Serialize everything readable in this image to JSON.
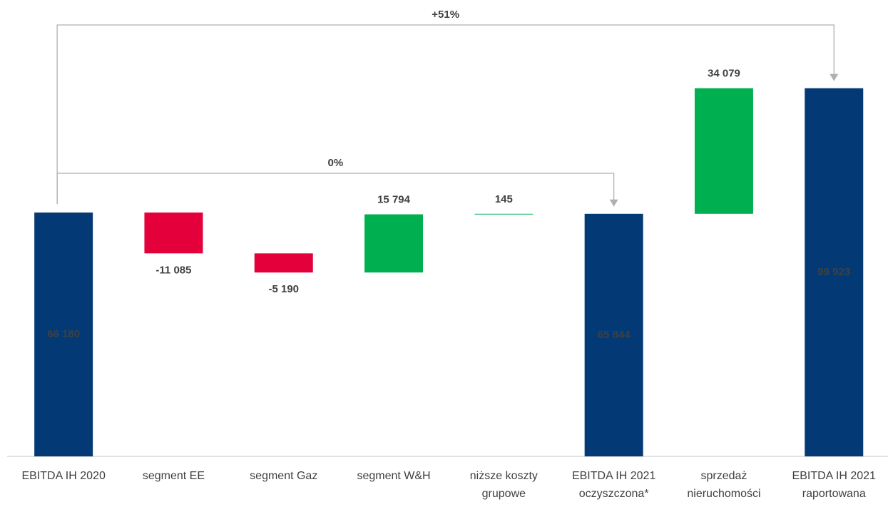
{
  "chart_data": {
    "type": "waterfall",
    "categories": [
      "EBITDA IH 2020",
      "segment EE",
      "segment Gaz",
      "segment W&H",
      "niższe koszty\ngrupowe",
      "EBITDA IH 2021\noczyszczona*",
      "sprzedaż\nnieruchomości",
      "EBITDA IH 2021\nraportowana"
    ],
    "values": [
      66180,
      -11085,
      -5190,
      15794,
      145,
      65844,
      34079,
      99923
    ],
    "value_labels": [
      "66 180",
      "-11 085",
      "-5 190",
      "15 794",
      "145",
      "65 844",
      "34 079",
      "99 923"
    ],
    "totals": [
      true,
      false,
      false,
      false,
      false,
      true,
      false,
      true
    ],
    "colors": {
      "total": "#033a76",
      "increase": "#00b050",
      "decrease": "#e4003b"
    },
    "ylim": [
      0,
      120000
    ],
    "annotations": [
      {
        "text": "+51%",
        "from": 0,
        "to": 7
      },
      {
        "text": "0%",
        "from": 0,
        "to": 5
      }
    ]
  }
}
